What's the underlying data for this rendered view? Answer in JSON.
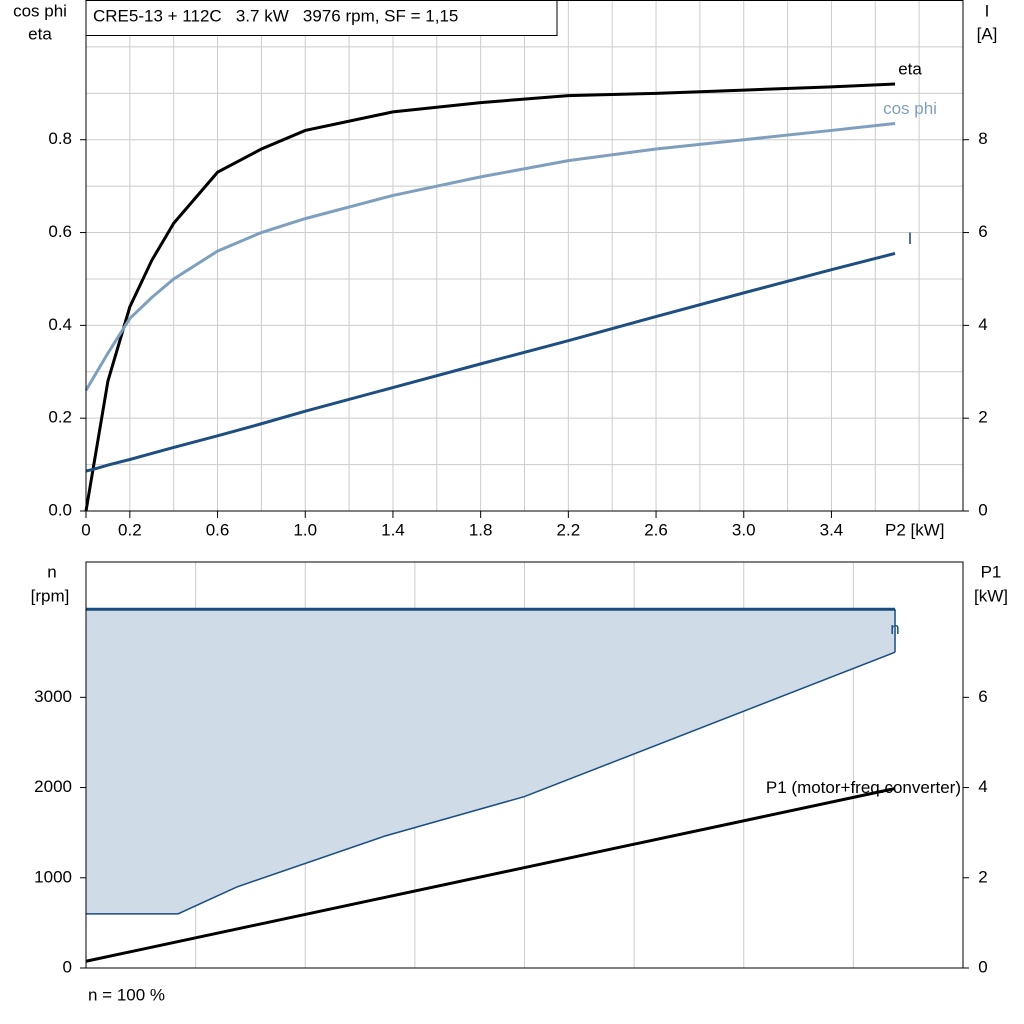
{
  "chart_data": [
    {
      "type": "line",
      "title": "CRE5-13 + 112C   3.7 kW   3976 rpm, SF = 1,15",
      "ylabel": [
        "cos phi",
        "eta"
      ],
      "y2label": [
        "I",
        "[A]"
      ],
      "xlabel": "P2 [kW]",
      "x": [
        0,
        0.05,
        0.1,
        0.2,
        0.3,
        0.4,
        0.6,
        0.8,
        1.0,
        1.4,
        1.8,
        2.2,
        2.6,
        3.0,
        3.4,
        3.69
      ],
      "xlim": [
        0,
        4
      ],
      "xticks": [
        0,
        0.2,
        0.6,
        {
          "value": 1,
          "label": "1.0"
        },
        1.4,
        1.8,
        2.2,
        2.6,
        {
          "value": 3,
          "label": "3.0"
        },
        3.4
      ],
      "ylim": [
        0,
        1.1
      ],
      "yticks": [
        {
          "value": 0,
          "label": "0.0"
        },
        0.2,
        0.4,
        0.6,
        0.8
      ],
      "y2lim": [
        0,
        11
      ],
      "y2ticks": [
        0,
        2,
        4,
        6,
        8
      ],
      "xgrid_step": 0.2,
      "ygrid_step": 0.1,
      "grid": true,
      "series": [
        {
          "name": "eta",
          "color": "#000000",
          "values": [
            0,
            0.14,
            0.28,
            0.44,
            0.54,
            0.62,
            0.73,
            0.78,
            0.82,
            0.86,
            0.88,
            0.895,
            0.9,
            0.907,
            0.914,
            0.92
          ]
        },
        {
          "name": "cos phi",
          "color": "#7f9fbf",
          "values": [
            0.26,
            0.3,
            0.34,
            0.415,
            0.46,
            0.5,
            0.56,
            0.6,
            0.63,
            0.68,
            0.72,
            0.755,
            0.78,
            0.8,
            0.82,
            0.835
          ]
        },
        {
          "name": "I",
          "color": "#1f4e80",
          "axis": "y2",
          "values": [
            0.86,
            0.92,
            0.99,
            1.11,
            1.24,
            1.37,
            1.62,
            1.88,
            2.15,
            2.66,
            3.17,
            3.67,
            4.19,
            4.7,
            5.2,
            5.55
          ]
        }
      ]
    },
    {
      "type": "area",
      "ylabel": [
        "n",
        "[rpm]"
      ],
      "y2label": [
        "P1",
        "[kW]"
      ],
      "note": "n = 100 %",
      "xlim": [
        0,
        4
      ],
      "ylim": [
        0,
        4500
      ],
      "yticks": [
        0,
        1000,
        2000,
        3000
      ],
      "y2lim": [
        0,
        9
      ],
      "y2ticks": [
        0,
        2,
        4,
        6
      ],
      "xgrid_step": 0.5,
      "grid": true,
      "series": [
        {
          "name": "n",
          "color": "#1a4d80",
          "fill": "#cfdbe7",
          "x": [
            0,
            3.69
          ],
          "values": [
            3976,
            3976
          ],
          "min_x": [
            0,
            0.42,
            0.69,
            1.36,
            2.0,
            3.69
          ],
          "min_values": [
            600,
            600,
            900,
            1460,
            1900,
            3500
          ]
        },
        {
          "name": "P1 (motor+freq.converter)",
          "color": "#000000",
          "axis": "y2",
          "x": [
            0,
            3.69
          ],
          "values": [
            0.15,
            3.98
          ]
        }
      ]
    }
  ]
}
